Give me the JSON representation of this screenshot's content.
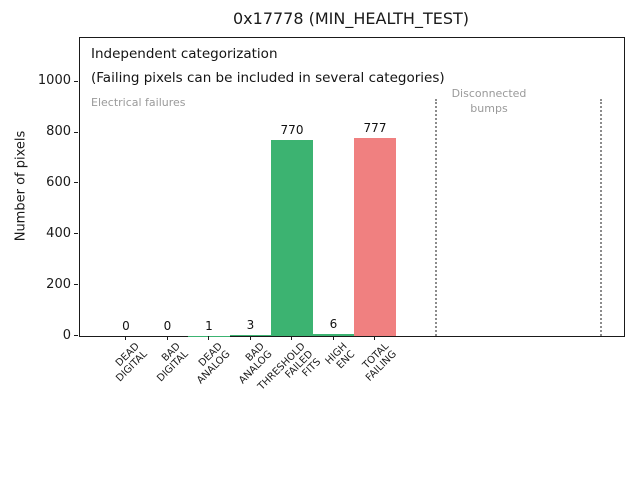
{
  "title": "0x17778 (MIN_HEALTH_TEST)",
  "chart_data": {
    "type": "bar",
    "title": "0x17778 (MIN_HEALTH_TEST)",
    "categories": [
      "DEAD\nDIGITAL",
      "BAD\nDIGITAL",
      "DEAD\nANALOG",
      "BAD\nANALOG",
      "THRESHOLD\nFAILED\nFITS",
      "HIGH\nENC",
      "TOTAL\nFAILING"
    ],
    "values": [
      0,
      0,
      1,
      3,
      770,
      6,
      777
    ],
    "value_labels": [
      "0",
      "0",
      "1",
      "3",
      "770",
      "6",
      "777"
    ],
    "bar_colors": [
      "#3cb371",
      "#3cb371",
      "#3cb371",
      "#3cb371",
      "#3cb371",
      "#3cb371",
      "#f08080"
    ],
    "xlabel": "",
    "ylabel": "Number of pixels",
    "yticks": [
      0,
      200,
      400,
      600,
      800,
      1000
    ],
    "ylim": [
      0,
      1172
    ],
    "grid": false,
    "legend": "none",
    "annotations": {
      "note_line1": "Independent categorization",
      "note_line2": "(Failing pixels can be included in several categories)",
      "region_labels": [
        "Electrical failures",
        "Disconnected\nbumps"
      ]
    },
    "region_separator_color": "#8c8c8c",
    "region_label_color": "#9a9a9a"
  }
}
